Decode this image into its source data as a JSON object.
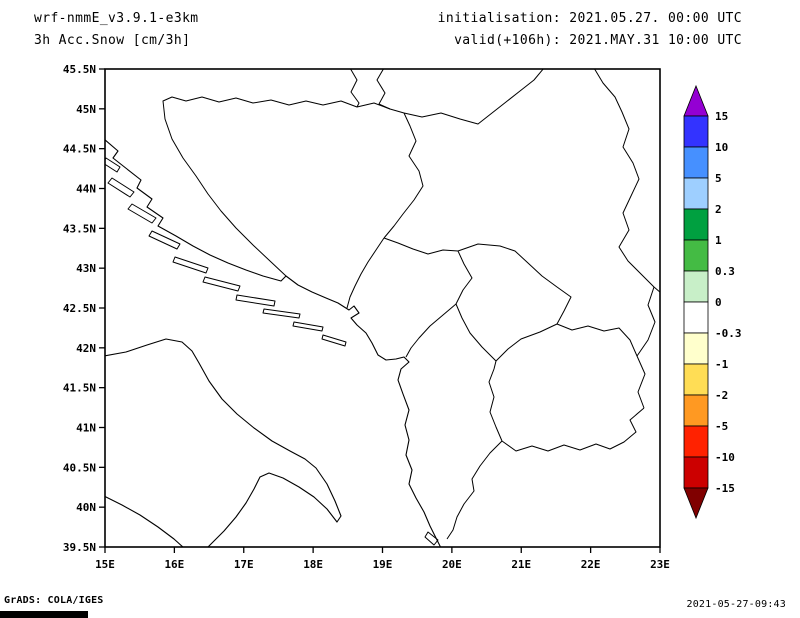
{
  "header": {
    "line1_left": "wrf-nmmE_v3.9.1-e3km",
    "line2_left": "3h Acc.Snow [cm/3h]",
    "line1_right": "initialisation: 2021.05.27.  00:00 UTC",
    "line2_right": "valid(+106h): 2021.MAY.31 10:00 UTC"
  },
  "footer": {
    "left": "GrADS: COLA/IGES",
    "right": "2021-05-27-09:43"
  },
  "chart_data": {
    "type": "map",
    "title": "3h Acc.Snow [cm/3h]",
    "model": "wrf-nmmE_v3.9.1-e3km",
    "initialisation": "2021.05.27. 00:00 UTC",
    "valid": "(+106h) 2021.MAY.31 10:00 UTC",
    "units": "cm/3h",
    "projection": "lat-lon",
    "lon_range_deg_east": [
      15,
      23
    ],
    "lat_range_deg_north": [
      39.5,
      45.5
    ],
    "x_tick_labels": [
      "15E",
      "16E",
      "17E",
      "18E",
      "19E",
      "20E",
      "21E",
      "22E",
      "23E"
    ],
    "y_tick_labels": [
      "45.5N",
      "45N",
      "44.5N",
      "44N",
      "43.5N",
      "43N",
      "42.5N",
      "42N",
      "41.5N",
      "41N",
      "40.5N",
      "40N",
      "39.5N"
    ],
    "region": "Adriatic / western Balkans (Italy, Croatia, Bosnia, Serbia, Montenegro, Kosovo, Albania, North Macedonia, northern Greece)",
    "shaded_values_visible": "none - map area is unshaded (no 3h accumulated snow above lowest contour level in the domain)",
    "grid": "off",
    "legend_position": "right",
    "colorbar": {
      "tick_labels": [
        "15",
        "10",
        "5",
        "2",
        "1",
        "0.3",
        "0",
        "-0.3",
        "-1",
        "-2",
        "-5",
        "-10",
        "-15"
      ],
      "arrow_top_color": "#9400d3",
      "segment_colors_top_to_bottom": [
        "#3333ff",
        "#4690ff",
        "#9ecfff",
        "#00a040",
        "#44bb44",
        "#c8efc8",
        "#ffffff",
        "#ffffcc",
        "#ffdd55",
        "#ff9922",
        "#ff2200",
        "#cc0000"
      ],
      "arrow_bottom_color": "#800000"
    },
    "map_geometry": {
      "coast_paths": [
        "M104,139 L118,151 L113,158 L127,169 L141,180 L137,188 L152,199 L147,207 L163,218 L158,226 L176,236 L193,246 L210,255 L228,263 L246,270 L263,276 L281,281 L286,276 L298,285 L312,292 L326,298 L338,303 L349,310 L354,306 L359,313 L351,318 L357,325 L366,333 L372,343 L378,355 L386,360 L396,359 L404,357 L409,362 L401,369 L398,380 L403,394 L409,410 L405,425 L409,440 L406,455 L412,470 L409,484 L416,498 L424,512 L430,526 L437,540 L441,548",
        "M104,356 L126,352 L147,345 L166,339 L182,342 L192,351 L199,363 L209,381 L222,399 L237,414 L254,428 L272,441 L290,451 L305,459 L316,468 L327,484 L335,501 L341,516 L337,522 L327,509 L314,497 L299,487 L283,478 L269,473 L260,477 L254,489 L246,503 L236,517 L224,531 L212,543 L207,548",
        "M104,496 L122,505 L140,515 L158,527 L174,539 L184,548"
      ],
      "island_paths": [
        "M106,158 L120,167 L117,172 L103,163 Z",
        "M112,178 L134,192 L130,197 L108,183 Z",
        "M132,204 L156,218 L152,223 L128,209 Z",
        "M152,231 L180,244 L177,249 L149,236 Z",
        "M175,257 L208,268 L206,273 L173,262 Z",
        "M205,277 L240,286 L238,291 L203,282 Z",
        "M237,295 L275,301 L274,306 L236,300 Z",
        "M264,309 L300,314 L299,318 L263,313 Z",
        "M294,322 L323,327 L322,331 L293,326 Z",
        "M323,335 L346,342 L345,346 L322,339 Z",
        "M428,532 L438,540 L434,545 L425,537 Z"
      ],
      "border_paths": [
        "M286,276 L270,261 L253,245 L236,228 L221,211 L208,194 L196,176 L183,158 L172,139 L165,119 L163,101 L172,97 L186,101 L202,97 L219,102 L236,98 L253,103 L271,100 L289,105 L306,101 L323,105 L341,101 L357,107 L374,103 L390,109 L404,113",
        "M404,113 L410,126 L416,141 L409,156 L419,171 L423,186 L414,200 L403,214 L394,226 L384,238",
        "M384,238 L376,250 L368,262 L361,274 L355,286 L350,297 L347,308",
        "M350,68 L357,80 L351,92 L359,103 L357,107",
        "M384,68 L377,80 L385,93 L379,104 L390,109",
        "M404,113 L422,117 L441,113 L460,119 L478,124 L492,113 L506,102 L520,91 L534,80 L544,68",
        "M594,68 L603,83 L615,97 L622,112 L629,129 L623,147 L633,163 L639,179 L631,196 L623,213 L629,230 L619,247 L628,261 L641,274 L654,287 L661,293",
        "M654,287 L648,305 L655,322 L648,340 L637,356 L645,374 L638,392 L644,408",
        "M644,408 L630,420 L636,432 L624,442 L610,449 L596,444 L580,450 L564,445 L548,451 L532,446 L516,451 L502,441",
        "M502,441 L490,453 L480,466 L472,479 L474,491 L464,504 L457,517 L453,530 L447,539",
        "M502,441 L496,427 L490,412 L494,397 L489,382 L494,369 L496,361",
        "M458,251 L478,244 L500,246 L515,251 L528,263 L542,276 L557,287 L571,297 L564,311 L557,324 L540,332 L521,339 L508,349 L496,361 L482,347 L470,333 L462,318 L456,304 L463,290 L472,278 L464,264 Z",
        "M557,324 L572,330 L588,326 L604,331 L619,328 L630,340 L637,356",
        "M384,238 L398,243 L413,249 L428,254 L443,250 L458,251",
        "M456,304 L443,315 L430,326 L419,338 L411,348 L406,357"
      ]
    }
  }
}
